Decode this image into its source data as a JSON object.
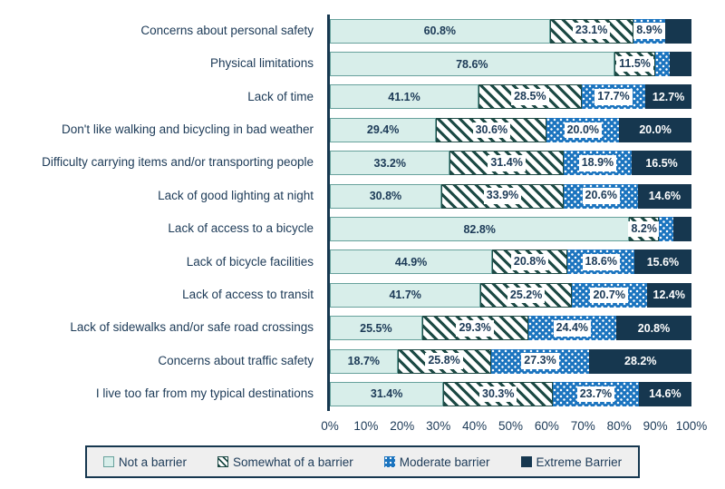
{
  "chart_data": {
    "type": "bar",
    "variant": "horizontal-stacked",
    "title": "",
    "grid": false,
    "x_axis": {
      "min": 0,
      "max": 100,
      "ticks": [
        "0%",
        "10%",
        "20%",
        "30%",
        "40%",
        "50%",
        "60%",
        "70%",
        "80%",
        "90%",
        "100%"
      ]
    },
    "legend": {
      "position": "bottom",
      "entries": [
        "Not a barrier",
        "Somewhat of a barrier",
        "Moderate barrier",
        "Extreme Barrier"
      ]
    },
    "series_names": [
      "Not a barrier",
      "Somewhat of a barrier",
      "Moderate barrier",
      "Extreme Barrier"
    ],
    "rows": [
      {
        "category": "Concerns about personal safety",
        "segments": [
          {
            "value": 60.8,
            "label": "60.8%"
          },
          {
            "value": 23.1,
            "label": "23.1%"
          },
          {
            "value": 8.9,
            "label": "8.9%"
          },
          {
            "value": 7.2,
            "label": ""
          }
        ]
      },
      {
        "category": "Physical limitations",
        "segments": [
          {
            "value": 78.6,
            "label": "78.6%"
          },
          {
            "value": 11.5,
            "label": "11.5%"
          },
          {
            "value": 3.9,
            "label": ""
          },
          {
            "value": 6.0,
            "label": ""
          }
        ]
      },
      {
        "category": "Lack of time",
        "segments": [
          {
            "value": 41.1,
            "label": "41.1%"
          },
          {
            "value": 28.5,
            "label": "28.5%"
          },
          {
            "value": 17.7,
            "label": "17.7%"
          },
          {
            "value": 12.7,
            "label": "12.7%"
          }
        ]
      },
      {
        "category": "Don't like walking and bicycling in bad weather",
        "segments": [
          {
            "value": 29.4,
            "label": "29.4%"
          },
          {
            "value": 30.6,
            "label": "30.6%"
          },
          {
            "value": 20.0,
            "label": "20.0%"
          },
          {
            "value": 20.0,
            "label": "20.0%"
          }
        ]
      },
      {
        "category": "Difficulty carrying items and/or transporting people",
        "segments": [
          {
            "value": 33.2,
            "label": "33.2%"
          },
          {
            "value": 31.4,
            "label": "31.4%"
          },
          {
            "value": 18.9,
            "label": "18.9%"
          },
          {
            "value": 16.5,
            "label": "16.5%"
          }
        ]
      },
      {
        "category": "Lack of good lighting at night",
        "segments": [
          {
            "value": 30.8,
            "label": "30.8%"
          },
          {
            "value": 33.9,
            "label": "33.9%"
          },
          {
            "value": 20.6,
            "label": "20.6%"
          },
          {
            "value": 14.6,
            "label": "14.6%"
          }
        ]
      },
      {
        "category": "Lack of access to a bicycle",
        "segments": [
          {
            "value": 82.8,
            "label": "82.8%"
          },
          {
            "value": 8.2,
            "label": "8.2%"
          },
          {
            "value": 4.0,
            "label": ""
          },
          {
            "value": 5.0,
            "label": ""
          }
        ]
      },
      {
        "category": "Lack of bicycle facilities",
        "segments": [
          {
            "value": 44.9,
            "label": "44.9%"
          },
          {
            "value": 20.8,
            "label": "20.8%"
          },
          {
            "value": 18.6,
            "label": "18.6%"
          },
          {
            "value": 15.6,
            "label": "15.6%"
          }
        ]
      },
      {
        "category": "Lack of access to transit",
        "segments": [
          {
            "value": 41.7,
            "label": "41.7%"
          },
          {
            "value": 25.2,
            "label": "25.2%"
          },
          {
            "value": 20.7,
            "label": "20.7%"
          },
          {
            "value": 12.4,
            "label": "12.4%"
          }
        ]
      },
      {
        "category": "Lack of sidewalks and/or safe road crossings",
        "segments": [
          {
            "value": 25.5,
            "label": "25.5%"
          },
          {
            "value": 29.3,
            "label": "29.3%"
          },
          {
            "value": 24.4,
            "label": "24.4%"
          },
          {
            "value": 20.8,
            "label": "20.8%"
          }
        ]
      },
      {
        "category": "Concerns about traffic safety",
        "segments": [
          {
            "value": 18.7,
            "label": "18.7%"
          },
          {
            "value": 25.8,
            "label": "25.8%"
          },
          {
            "value": 27.3,
            "label": "27.3%"
          },
          {
            "value": 28.2,
            "label": "28.2%"
          }
        ]
      },
      {
        "category": "I live too far from my typical destinations",
        "segments": [
          {
            "value": 31.4,
            "label": "31.4%"
          },
          {
            "value": 30.3,
            "label": "30.3%"
          },
          {
            "value": 23.7,
            "label": "23.7%"
          },
          {
            "value": 14.6,
            "label": "14.6%"
          }
        ]
      }
    ],
    "colors": {
      "not_a_barrier_fill": "#d8eeea",
      "not_a_barrier_border": "#67a19c",
      "somewhat_hatch_stripe": "#1d4a45",
      "moderate_fill": "#1b74bf",
      "extreme_fill": "#16374f",
      "label_text": "#1c3a57",
      "legend_background": "#efefef"
    }
  }
}
